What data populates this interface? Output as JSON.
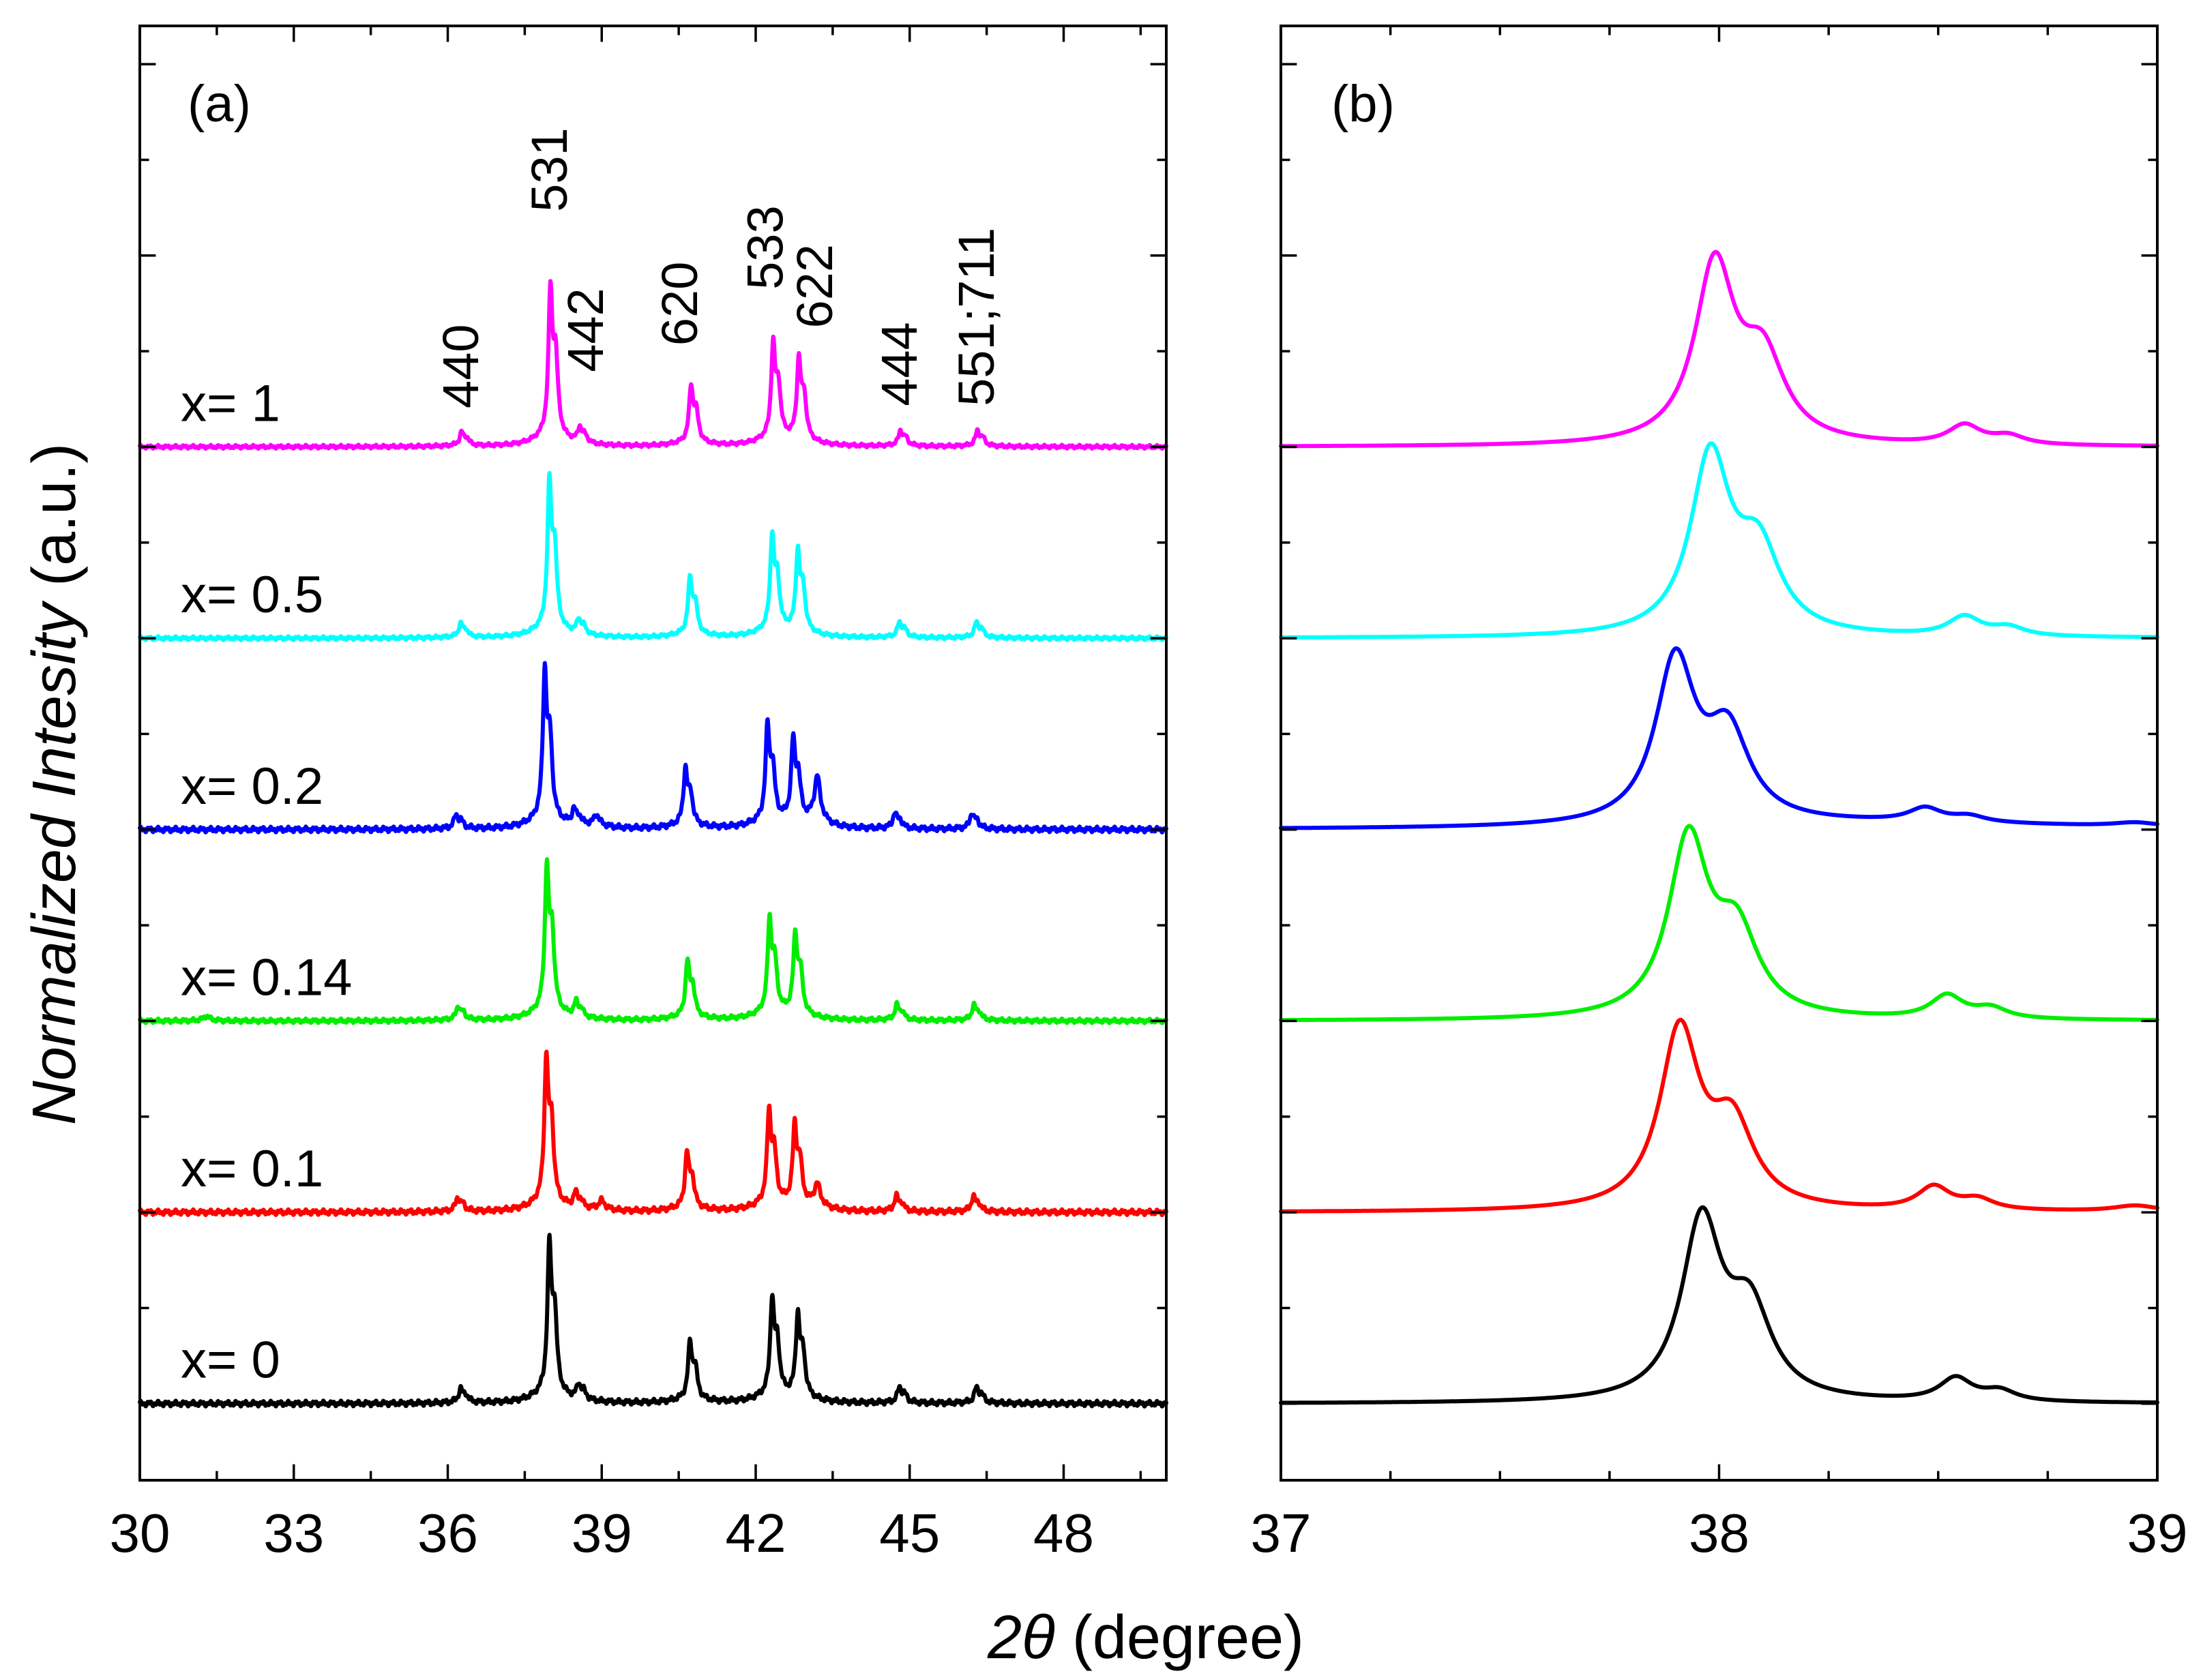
{
  "figure": {
    "ylabel": {
      "italic": "Normalized Intesity",
      "plain": " (a.u.)"
    },
    "xlabel": {
      "italic": "2θ",
      "plain": " (degree)"
    }
  },
  "chart_data": [
    {
      "type": "line",
      "panel_label": "(a)",
      "xlim": [
        30,
        50
      ],
      "xticks": [
        30,
        33,
        36,
        39,
        42,
        45,
        48
      ],
      "x_minor_step": 1.5,
      "ylim": [
        -0.4,
        7.2
      ],
      "y_tick_step": 0.5,
      "yticks_shown": false,
      "offset_step": 1,
      "series": [
        {
          "name": "x= 0",
          "color": "#000000",
          "offset": 0,
          "amp": 1.0,
          "shift": 0.0,
          "noise": 0.015,
          "extra": []
        },
        {
          "name": "x= 0.1",
          "color": "#ff0000",
          "offset": 1,
          "amp": 0.97,
          "shift": -0.06,
          "noise": 0.015,
          "extra": [
            [
              39.0,
              0.04,
              0.2
            ],
            [
              43.2,
              0.1,
              0.2
            ]
          ]
        },
        {
          "name": "x= 0.14",
          "color": "#00ee00",
          "offset": 2,
          "amp": 0.97,
          "shift": -0.05,
          "noise": 0.012,
          "extra": [
            [
              31.3,
              0.02,
              0.2
            ]
          ]
        },
        {
          "name": "x= 0.2",
          "color": "#0000ff",
          "offset": 3,
          "amp": 0.99,
          "shift": -0.09,
          "noise": 0.015,
          "extra": [
            [
              38.9,
              0.05,
              0.25
            ],
            [
              43.2,
              0.2,
              0.2
            ]
          ]
        },
        {
          "name": "x= 0.5",
          "color": "#00ffff",
          "offset": 4,
          "amp": 0.98,
          "shift": 0.0,
          "noise": 0.01,
          "extra": []
        },
        {
          "name": "x= 1",
          "color": "#ff00ff",
          "offset": 5,
          "amp": 0.99,
          "shift": 0.02,
          "noise": 0.01,
          "extra": []
        }
      ],
      "peaks": [
        {
          "label": "440",
          "pos": 36.25,
          "height": 0.09
        },
        {
          "label": "531",
          "pos": 37.98,
          "height": 1.0
        },
        {
          "label": "442",
          "pos": 38.55,
          "height": 0.1
        },
        {
          "label": "620",
          "pos": 40.72,
          "height": 0.38
        },
        {
          "label": "533",
          "pos": 42.32,
          "height": 0.64
        },
        {
          "label": "622",
          "pos": 42.82,
          "height": 0.54
        },
        {
          "label": "444",
          "pos": 44.8,
          "height": 0.1
        },
        {
          "label": "551;711",
          "pos": 46.3,
          "height": 0.1
        }
      ]
    },
    {
      "type": "line",
      "panel_label": "(b)",
      "xlim": [
        37,
        39
      ],
      "xticks": [
        37,
        38,
        39
      ],
      "x_minor_step": 0.25,
      "ylim": [
        -0.4,
        7.2
      ],
      "y_tick_step": 0.5,
      "yticks_shown": false,
      "offset_step": 1,
      "series": [
        {
          "name": "x= 0",
          "color": "#000000",
          "offset": 0,
          "peak1": 37.96,
          "peak2": 38.07,
          "amp1": 0.92,
          "amp2": 0.45,
          "peak3": 38.54,
          "amp3": 0.12,
          "tilt": 0.0,
          "tail": 0.0
        },
        {
          "name": "x= 0.1",
          "color": "#ff0000",
          "offset": 1,
          "peak1": 37.91,
          "peak2": 38.03,
          "amp1": 0.92,
          "amp2": 0.42,
          "peak3": 38.49,
          "amp3": 0.12,
          "tilt": 0.0,
          "tail": 0.03
        },
        {
          "name": "x= 0.14",
          "color": "#00ee00",
          "offset": 2,
          "peak1": 37.93,
          "peak2": 38.04,
          "amp1": 0.92,
          "amp2": 0.42,
          "peak3": 38.52,
          "amp3": 0.12,
          "tilt": 0.0,
          "tail": 0.0
        },
        {
          "name": "x= 0.2",
          "color": "#0000ff",
          "offset": 3,
          "peak1": 37.9,
          "peak2": 38.02,
          "amp1": 0.84,
          "amp2": 0.45,
          "peak3": 38.47,
          "amp3": 0.07,
          "tilt": 0.03,
          "tail": 0.02
        },
        {
          "name": "x= 0.5",
          "color": "#00ffff",
          "offset": 4,
          "peak1": 37.98,
          "peak2": 38.09,
          "amp1": 0.92,
          "amp2": 0.42,
          "peak3": 38.56,
          "amp3": 0.1,
          "tilt": 0.0,
          "tail": 0.0
        },
        {
          "name": "x= 1",
          "color": "#ff00ff",
          "offset": 5,
          "peak1": 37.99,
          "peak2": 38.1,
          "amp1": 0.92,
          "amp2": 0.42,
          "peak3": 38.56,
          "amp3": 0.1,
          "tilt": 0.0,
          "tail": 0.0
        }
      ]
    }
  ]
}
